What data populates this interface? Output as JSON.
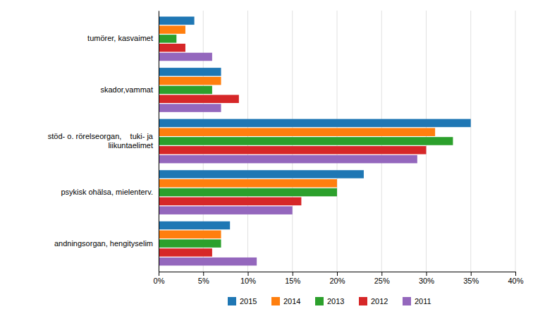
{
  "chart_data": {
    "type": "bar",
    "orientation": "horizontal",
    "categories": [
      "andningsorgan, hengityselim",
      "psykisk ohälsa, mielenterv.",
      "stöd- o. rörelseorgan,    tuki- ja\n  liikuntaelimet",
      "skador,vammat",
      "tumörer, kasvaimet"
    ],
    "series": [
      {
        "name": "2015",
        "values": [
          8,
          23,
          35,
          7,
          4
        ]
      },
      {
        "name": "2014",
        "values": [
          7,
          20,
          31,
          7,
          3
        ]
      },
      {
        "name": "2013",
        "values": [
          7,
          20,
          33,
          6,
          2
        ]
      },
      {
        "name": "2012",
        "values": [
          6,
          16,
          30,
          9,
          3
        ]
      },
      {
        "name": "2011",
        "values": [
          11,
          15,
          29,
          7,
          6
        ]
      }
    ],
    "xlim": [
      0,
      40
    ],
    "xticks": [
      {
        "value": 0,
        "label": "0%"
      },
      {
        "value": 5,
        "label": "5%"
      },
      {
        "value": 10,
        "label": "10%"
      },
      {
        "value": 15,
        "label": "15%"
      },
      {
        "value": 20,
        "label": "20%"
      },
      {
        "value": 25,
        "label": "25%"
      },
      {
        "value": 30,
        "label": "30%"
      },
      {
        "value": 35,
        "label": "35%"
      },
      {
        "value": 40,
        "label": "40%"
      }
    ],
    "grid": true,
    "legend": "bottom"
  }
}
